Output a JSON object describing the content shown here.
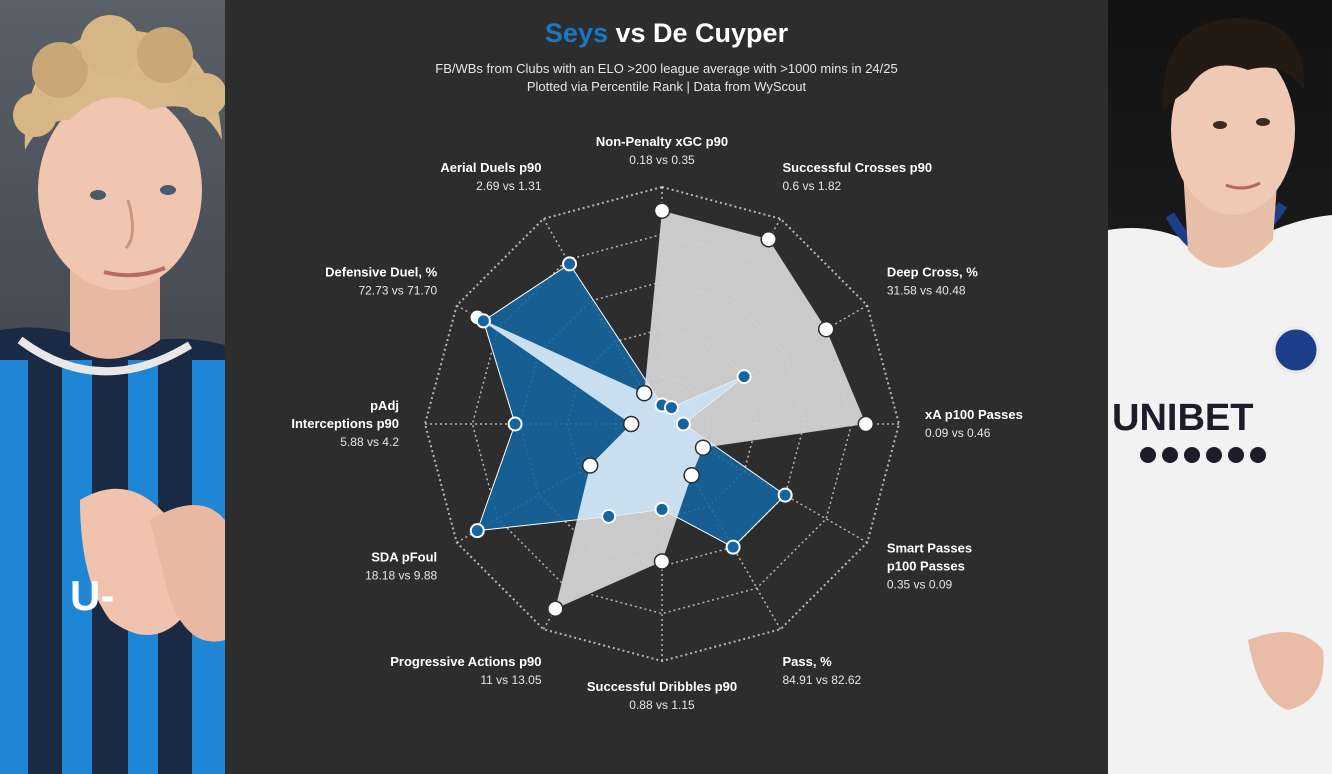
{
  "title": {
    "player1": "Seys",
    "separator": " vs ",
    "player2": "De Cuyper"
  },
  "subtitle": {
    "line1": "FB/WBs from Clubs with an ELO >200 league average with >1000 mins in 24/25",
    "line2": "Plotted via Percentile Rank | Data from WyScout"
  },
  "colors": {
    "background": "#2d2d2d",
    "player1": "#1565a0",
    "player1_light": "#c9dff0",
    "player2": "#d3d3d3",
    "grid": "#d9d9d9",
    "text": "#ffffff"
  },
  "photos": {
    "left": "seys-photo",
    "right": "de-cuyper-photo",
    "right_shirt_text": "UNIBET"
  },
  "chart_data": {
    "type": "radar",
    "scale": "percentile-rank",
    "range": [
      0,
      100
    ],
    "rings": 5,
    "grid": true,
    "axes": [
      {
        "label": [
          "Non-Penalty xGC p90"
        ],
        "values_text": "0.18 vs 0.35"
      },
      {
        "label": [
          "Successful Crosses p90"
        ],
        "values_text": "0.6 vs 1.82"
      },
      {
        "label": [
          "Deep Cross, %"
        ],
        "values_text": "31.58 vs 40.48"
      },
      {
        "label": [
          "xA p100 Passes"
        ],
        "values_text": "0.09 vs 0.46"
      },
      {
        "label": [
          "Smart Passes",
          "p100 Passes"
        ],
        "values_text": "0.35 vs 0.09"
      },
      {
        "label": [
          "Pass, %"
        ],
        "values_text": "84.91 vs 82.62"
      },
      {
        "label": [
          "Successful Dribbles p90"
        ],
        "values_text": "0.88 vs 1.15"
      },
      {
        "label": [
          "Progressive Actions p90"
        ],
        "values_text": "11 vs 13.05"
      },
      {
        "label": [
          "SDA pFoul"
        ],
        "values_text": "18.18 vs 9.88"
      },
      {
        "label": [
          "pAdj",
          "Interceptions p90"
        ],
        "values_text": "5.88 vs 4.2"
      },
      {
        "label": [
          "Defensive Duel, %"
        ],
        "values_text": "72.73 vs 71.70"
      },
      {
        "label": [
          "Aerial Duels p90"
        ],
        "values_text": "2.69 vs 1.31"
      }
    ],
    "series": [
      {
        "name": "Seys",
        "values": [
          8,
          8,
          40,
          9,
          60,
          60,
          36,
          45,
          90,
          62,
          87,
          78
        ]
      },
      {
        "name": "De Cuyper",
        "values": [
          90,
          90,
          80,
          86,
          20,
          25,
          58,
          90,
          35,
          13,
          90,
          15
        ]
      }
    ]
  }
}
